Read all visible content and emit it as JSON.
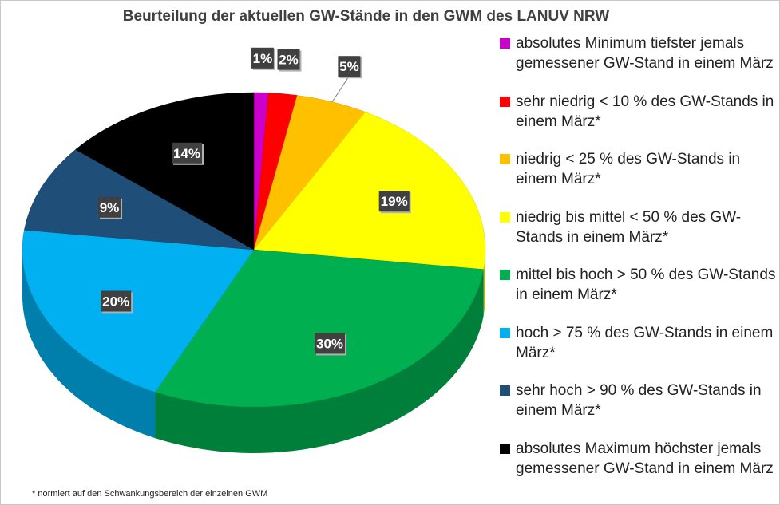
{
  "title": "Beurteilung der aktuellen GW-Stände in den GWM des LANUV NRW",
  "footnote": "* normiert auf den Schwankungsbereich der einzelnen GWM",
  "chart_data": {
    "type": "pie",
    "title": "Beurteilung der aktuellen GW-Stände in den GWM des LANUV NRW",
    "legend_position": "right",
    "slices": [
      {
        "label": "absolutes Minimum  tiefster jemals gemessener GW-Stand in einem März",
        "value": 1,
        "value_label": "1%",
        "color": "#cc00cc"
      },
      {
        "label": "sehr niedrig  < 10 % des GW-Stands in einem März*",
        "value": 2,
        "value_label": "2%",
        "color": "#ff0000"
      },
      {
        "label": "niedrig   < 25 % des GW-Stands in einem März*",
        "value": 5,
        "value_label": "5%",
        "color": "#ffc000"
      },
      {
        "label": "niedrig bis mittel  < 50 % des GW-Stands in einem März*",
        "value": 19,
        "value_label": "19%",
        "color": "#ffff00"
      },
      {
        "label": "mittel bis hoch  > 50 % des GW-Stands in einem März*",
        "value": 30,
        "value_label": "30%",
        "color": "#00b050"
      },
      {
        "label": "hoch  > 75 % des GW-Stands in einem März*",
        "value": 20,
        "value_label": "20%",
        "color": "#00b0f0"
      },
      {
        "label": "sehr hoch  > 90 % des GW-Stands in einem März*",
        "value": 9,
        "value_label": "9%",
        "color": "#1f4e79"
      },
      {
        "label": "absolutes Maximum  höchster jemals gemessener GW-Stand in einem März",
        "value": 14,
        "value_label": "14%",
        "color": "#000000"
      }
    ]
  }
}
